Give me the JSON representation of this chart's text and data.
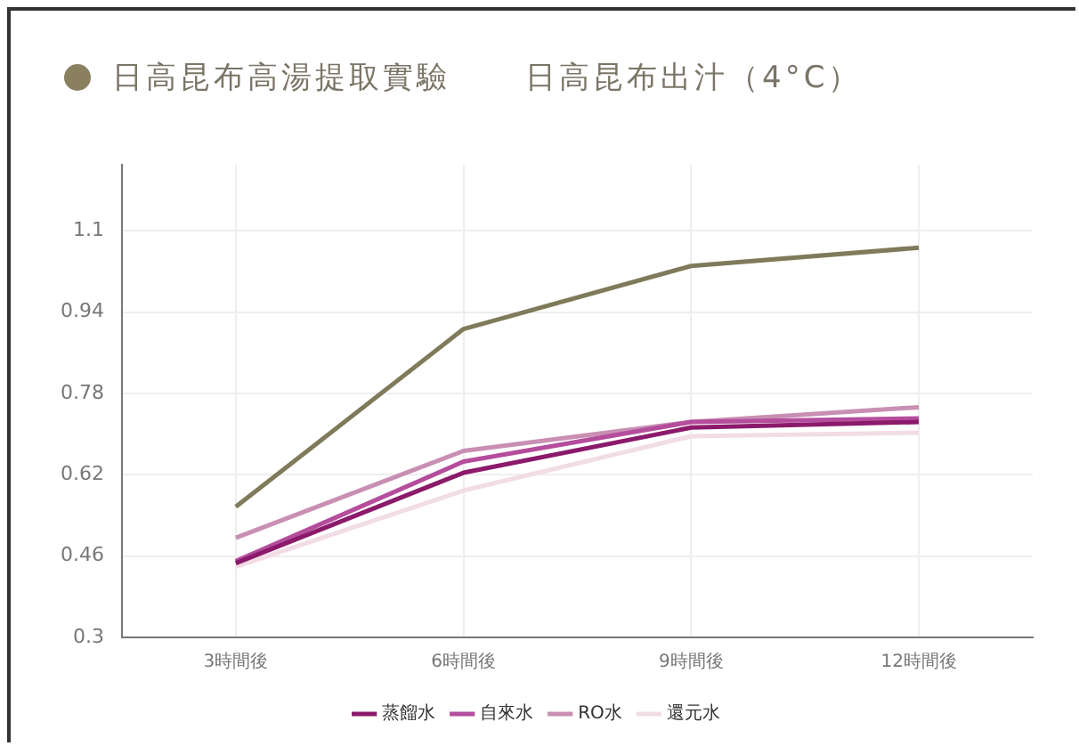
{
  "chart_data": {
    "type": "line",
    "title": "日高昆布高湯提取實驗",
    "subtitle": "日高昆布出汁（4°C）",
    "categories": [
      "3時間後",
      "6時間後",
      "9時間後",
      "12時間後"
    ],
    "series": [
      {
        "color": "#7f7a5a",
        "values": [
          0.557,
          0.907,
          1.031,
          1.067
        ]
      },
      {
        "name": "蒸餾水",
        "color": "#8b1a6b",
        "values": [
          0.446,
          0.624,
          0.713,
          0.724
        ]
      },
      {
        "name": "自來水",
        "color": "#b44d9c",
        "values": [
          0.45,
          0.646,
          0.724,
          0.731
        ]
      },
      {
        "name": "RO水",
        "color": "#c98fb3",
        "values": [
          0.496,
          0.667,
          0.724,
          0.753
        ]
      },
      {
        "name": "還元水",
        "color": "#f2dce6",
        "values": [
          0.439,
          0.589,
          0.696,
          0.703
        ]
      }
    ],
    "ylim": [
      0.3,
      1.23
    ],
    "yticks": [
      0.3,
      0.46,
      0.62,
      0.78,
      0.94,
      1.1
    ],
    "grid": true,
    "legend": "bottom",
    "marker": "none",
    "line_style": "solid"
  }
}
